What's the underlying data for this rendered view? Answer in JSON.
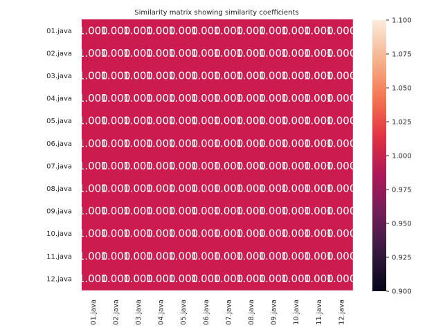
{
  "chart_data": {
    "type": "heatmap",
    "title": "Similarity matrix showing similarity coefficients",
    "row_labels": [
      "01.java",
      "02.java",
      "03.java",
      "04.java",
      "05.java",
      "06.java",
      "07.java",
      "08.java",
      "09.java",
      "10.java",
      "11.java",
      "12.java"
    ],
    "col_labels": [
      "01.java",
      "02.java",
      "03.java",
      "04.java",
      "05.java",
      "06.java",
      "07.java",
      "08.java",
      "09.java",
      "10.java",
      "11.java",
      "12.java"
    ],
    "values": [
      [
        1,
        1,
        1,
        1,
        1,
        1,
        1,
        1,
        1,
        1,
        1,
        1
      ],
      [
        1,
        1,
        1,
        1,
        1,
        1,
        1,
        1,
        1,
        1,
        1,
        1
      ],
      [
        1,
        1,
        1,
        1,
        1,
        1,
        1,
        1,
        1,
        1,
        1,
        1
      ],
      [
        1,
        1,
        1,
        1,
        1,
        1,
        1,
        1,
        1,
        1,
        1,
        1
      ],
      [
        1,
        1,
        1,
        1,
        1,
        1,
        1,
        1,
        1,
        1,
        1,
        1
      ],
      [
        1,
        1,
        1,
        1,
        1,
        1,
        1,
        1,
        1,
        1,
        1,
        1
      ],
      [
        1,
        1,
        1,
        1,
        1,
        1,
        1,
        1,
        1,
        1,
        1,
        1
      ],
      [
        1,
        1,
        1,
        1,
        1,
        1,
        1,
        1,
        1,
        1,
        1,
        1
      ],
      [
        1,
        1,
        1,
        1,
        1,
        1,
        1,
        1,
        1,
        1,
        1,
        1
      ],
      [
        1,
        1,
        1,
        1,
        1,
        1,
        1,
        1,
        1,
        1,
        1,
        1
      ],
      [
        1,
        1,
        1,
        1,
        1,
        1,
        1,
        1,
        1,
        1,
        1,
        1
      ],
      [
        1,
        1,
        1,
        1,
        1,
        1,
        1,
        1,
        1,
        1,
        1,
        1
      ]
    ],
    "annotation_format": "1.000",
    "colorbar": {
      "range": [
        0.9,
        1.1
      ],
      "ticks": [
        "0.900",
        "0.925",
        "0.950",
        "0.975",
        "1.000",
        "1.025",
        "1.050",
        "1.075",
        "1.100"
      ],
      "colormap": "rocket",
      "stops": [
        "#03051a",
        "#36193e",
        "#701f57",
        "#ad1759",
        "#e13342",
        "#f37651",
        "#f6b48f",
        "#faebdd"
      ]
    },
    "cell_color": "#cb1b4f",
    "annotation_color": "#ffffff",
    "grid": false,
    "legend": "colorbar right"
  }
}
